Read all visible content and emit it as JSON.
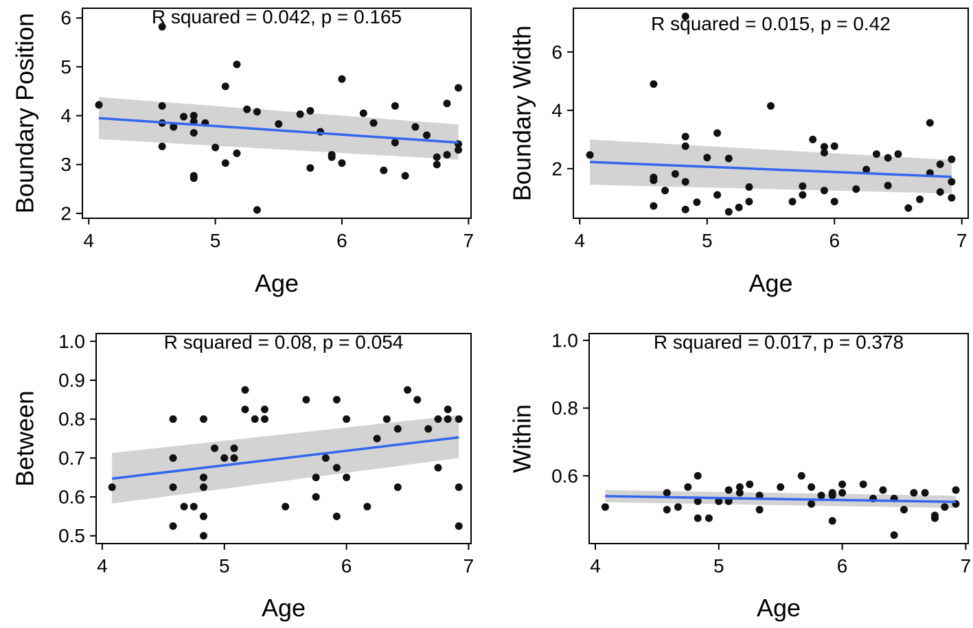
{
  "chart_data": [
    {
      "type": "scatter",
      "xlabel": "Age",
      "ylabel": "Boundary Position",
      "annotation": "R squared = 0.042, p = 0.165",
      "xlim": [
        3.95,
        7.02
      ],
      "ylim": [
        1.9,
        6.2
      ],
      "xticks": [
        4,
        5,
        6,
        7
      ],
      "yticks": [
        2,
        3,
        4,
        5,
        6
      ],
      "points": [
        [
          4.08,
          4.22
        ],
        [
          4.58,
          5.82
        ],
        [
          4.58,
          4.2
        ],
        [
          4.58,
          3.85
        ],
        [
          4.58,
          3.37
        ],
        [
          4.67,
          3.77
        ],
        [
          4.75,
          3.98
        ],
        [
          4.83,
          4.0
        ],
        [
          4.83,
          3.88
        ],
        [
          4.83,
          3.65
        ],
        [
          4.83,
          2.77
        ],
        [
          4.83,
          2.72
        ],
        [
          4.92,
          3.85
        ],
        [
          5.0,
          3.35
        ],
        [
          5.08,
          4.6
        ],
        [
          5.08,
          3.03
        ],
        [
          5.17,
          5.05
        ],
        [
          5.17,
          3.23
        ],
        [
          5.25,
          4.13
        ],
        [
          5.33,
          4.08
        ],
        [
          5.33,
          2.07
        ],
        [
          5.5,
          3.83
        ],
        [
          5.67,
          4.03
        ],
        [
          5.75,
          4.1
        ],
        [
          5.75,
          2.93
        ],
        [
          5.83,
          3.67
        ],
        [
          5.92,
          3.2
        ],
        [
          5.92,
          3.15
        ],
        [
          6.0,
          4.75
        ],
        [
          6.0,
          3.03
        ],
        [
          6.17,
          4.05
        ],
        [
          6.25,
          3.85
        ],
        [
          6.33,
          2.88
        ],
        [
          6.42,
          4.2
        ],
        [
          6.42,
          3.45
        ],
        [
          6.5,
          2.77
        ],
        [
          6.58,
          3.77
        ],
        [
          6.67,
          3.6
        ],
        [
          6.75,
          3.15
        ],
        [
          6.75,
          3.0
        ],
        [
          6.83,
          4.25
        ],
        [
          6.83,
          3.2
        ],
        [
          6.92,
          4.57
        ],
        [
          6.92,
          3.42
        ],
        [
          6.92,
          3.3
        ]
      ],
      "fit": {
        "x": [
          4.08,
          6.92
        ],
        "y": [
          3.95,
          3.45
        ],
        "ci_lower": [
          3.52,
          3.1
        ],
        "ci_upper": [
          4.38,
          3.82
        ]
      }
    },
    {
      "type": "scatter",
      "xlabel": "Age",
      "ylabel": "Boundary Width",
      "annotation": "R squared  = 0.015, p = 0.42",
      "xlim": [
        3.95,
        7.05
      ],
      "ylim": [
        0.3,
        7.5
      ],
      "xticks": [
        4,
        5,
        6,
        7
      ],
      "yticks": [
        2,
        4,
        6
      ],
      "points": [
        [
          4.08,
          2.47
        ],
        [
          4.58,
          4.9
        ],
        [
          4.58,
          1.7
        ],
        [
          4.58,
          1.6
        ],
        [
          4.58,
          0.72
        ],
        [
          4.67,
          1.25
        ],
        [
          4.75,
          1.82
        ],
        [
          4.83,
          7.22
        ],
        [
          4.83,
          3.1
        ],
        [
          4.83,
          2.77
        ],
        [
          4.83,
          1.55
        ],
        [
          4.83,
          0.6
        ],
        [
          4.92,
          0.85
        ],
        [
          5.0,
          2.38
        ],
        [
          5.08,
          3.22
        ],
        [
          5.08,
          1.1
        ],
        [
          5.17,
          2.35
        ],
        [
          5.17,
          0.52
        ],
        [
          5.25,
          0.67
        ],
        [
          5.33,
          1.37
        ],
        [
          5.33,
          0.87
        ],
        [
          5.5,
          4.15
        ],
        [
          5.67,
          0.87
        ],
        [
          5.75,
          1.4
        ],
        [
          5.75,
          1.1
        ],
        [
          5.83,
          3.0
        ],
        [
          5.92,
          2.75
        ],
        [
          5.92,
          2.55
        ],
        [
          5.92,
          1.25
        ],
        [
          6.0,
          2.77
        ],
        [
          6.0,
          0.87
        ],
        [
          6.17,
          1.3
        ],
        [
          6.25,
          1.97
        ],
        [
          6.33,
          2.5
        ],
        [
          6.42,
          2.37
        ],
        [
          6.42,
          1.42
        ],
        [
          6.5,
          2.5
        ],
        [
          6.58,
          0.65
        ],
        [
          6.67,
          0.95
        ],
        [
          6.75,
          3.57
        ],
        [
          6.75,
          1.85
        ],
        [
          6.83,
          2.15
        ],
        [
          6.83,
          1.2
        ],
        [
          6.92,
          2.32
        ],
        [
          6.92,
          1.55
        ],
        [
          6.92,
          1.0
        ]
      ],
      "fit": {
        "x": [
          4.08,
          6.92
        ],
        "y": [
          2.23,
          1.72
        ],
        "ci_lower": [
          1.45,
          1.15
        ],
        "ci_upper": [
          3.0,
          2.3
        ]
      }
    },
    {
      "type": "scatter",
      "xlabel": "Age",
      "ylabel": "Between",
      "annotation": "R squared = 0.08, p = 0.054",
      "xlim": [
        3.95,
        7.02
      ],
      "ylim": [
        0.48,
        1.02
      ],
      "xticks": [
        4,
        5,
        6,
        7
      ],
      "yticks": [
        "0.5",
        "0.6",
        "0.7",
        "0.8",
        "0.9",
        "1.0"
      ],
      "points": [
        [
          4.08,
          0.625
        ],
        [
          4.58,
          0.8
        ],
        [
          4.58,
          0.7
        ],
        [
          4.58,
          0.625
        ],
        [
          4.58,
          0.525
        ],
        [
          4.67,
          0.575
        ],
        [
          4.75,
          0.575
        ],
        [
          4.83,
          0.8
        ],
        [
          4.83,
          0.65
        ],
        [
          4.83,
          0.625
        ],
        [
          4.83,
          0.55
        ],
        [
          4.83,
          0.5
        ],
        [
          4.92,
          0.725
        ],
        [
          5.0,
          0.7
        ],
        [
          5.08,
          0.725
        ],
        [
          5.08,
          0.7
        ],
        [
          5.17,
          0.875
        ],
        [
          5.17,
          0.825
        ],
        [
          5.25,
          0.8
        ],
        [
          5.33,
          0.825
        ],
        [
          5.33,
          0.8
        ],
        [
          5.5,
          0.575
        ],
        [
          5.67,
          0.85
        ],
        [
          5.75,
          0.65
        ],
        [
          5.75,
          0.6
        ],
        [
          5.83,
          0.7
        ],
        [
          5.92,
          0.85
        ],
        [
          5.92,
          0.675
        ],
        [
          5.92,
          0.55
        ],
        [
          6.0,
          0.8
        ],
        [
          6.0,
          0.65
        ],
        [
          6.17,
          0.575
        ],
        [
          6.25,
          0.75
        ],
        [
          6.33,
          0.8
        ],
        [
          6.42,
          0.775
        ],
        [
          6.42,
          0.625
        ],
        [
          6.5,
          0.875
        ],
        [
          6.58,
          0.85
        ],
        [
          6.67,
          0.775
        ],
        [
          6.75,
          0.8
        ],
        [
          6.75,
          0.675
        ],
        [
          6.83,
          0.825
        ],
        [
          6.83,
          0.8
        ],
        [
          6.92,
          0.8
        ],
        [
          6.92,
          0.625
        ],
        [
          6.92,
          0.525
        ]
      ],
      "fit": {
        "x": [
          4.08,
          6.92
        ],
        "y": [
          0.647,
          0.753
        ],
        "ci_lower": [
          0.583,
          0.7
        ],
        "ci_upper": [
          0.713,
          0.81
        ]
      }
    },
    {
      "type": "scatter",
      "xlabel": "Age",
      "ylabel": "Within",
      "annotation": "R squared  = 0.017, p = 0.378",
      "xlim": [
        3.95,
        7.02
      ],
      "ylim": [
        0.4,
        1.02
      ],
      "xticks": [
        4,
        5,
        6,
        7
      ],
      "yticks": [
        "0.6",
        "0.8",
        "1.0"
      ],
      "points": [
        [
          4.08,
          0.508
        ],
        [
          4.58,
          0.55
        ],
        [
          4.58,
          0.5
        ],
        [
          4.67,
          0.508
        ],
        [
          4.75,
          0.567
        ],
        [
          4.83,
          0.6
        ],
        [
          4.83,
          0.525
        ],
        [
          4.83,
          0.475
        ],
        [
          4.92,
          0.475
        ],
        [
          5.0,
          0.525
        ],
        [
          5.08,
          0.558
        ],
        [
          5.08,
          0.525
        ],
        [
          5.17,
          0.567
        ],
        [
          5.17,
          0.55
        ],
        [
          5.25,
          0.575
        ],
        [
          5.33,
          0.542
        ],
        [
          5.33,
          0.5
        ],
        [
          5.5,
          0.567
        ],
        [
          5.67,
          0.6
        ],
        [
          5.75,
          0.567
        ],
        [
          5.75,
          0.517
        ],
        [
          5.83,
          0.542
        ],
        [
          5.92,
          0.55
        ],
        [
          5.92,
          0.542
        ],
        [
          5.92,
          0.467
        ],
        [
          6.0,
          0.575
        ],
        [
          6.0,
          0.55
        ],
        [
          6.17,
          0.575
        ],
        [
          6.25,
          0.533
        ],
        [
          6.33,
          0.558
        ],
        [
          6.42,
          0.533
        ],
        [
          6.42,
          0.425
        ],
        [
          6.5,
          0.5
        ],
        [
          6.58,
          0.55
        ],
        [
          6.67,
          0.55
        ],
        [
          6.75,
          0.483
        ],
        [
          6.75,
          0.475
        ],
        [
          6.83,
          0.508
        ],
        [
          6.92,
          0.558
        ],
        [
          6.92,
          0.517
        ]
      ],
      "fit": {
        "x": [
          4.08,
          6.92
        ],
        "y": [
          0.54,
          0.523
        ],
        "ci_lower": [
          0.522,
          0.505
        ],
        "ci_upper": [
          0.558,
          0.541
        ]
      }
    }
  ],
  "colors": {
    "fit_line": "#3366ee",
    "ci_band": "#d3d3d3",
    "points": "#111111",
    "axes": "#000000"
  }
}
